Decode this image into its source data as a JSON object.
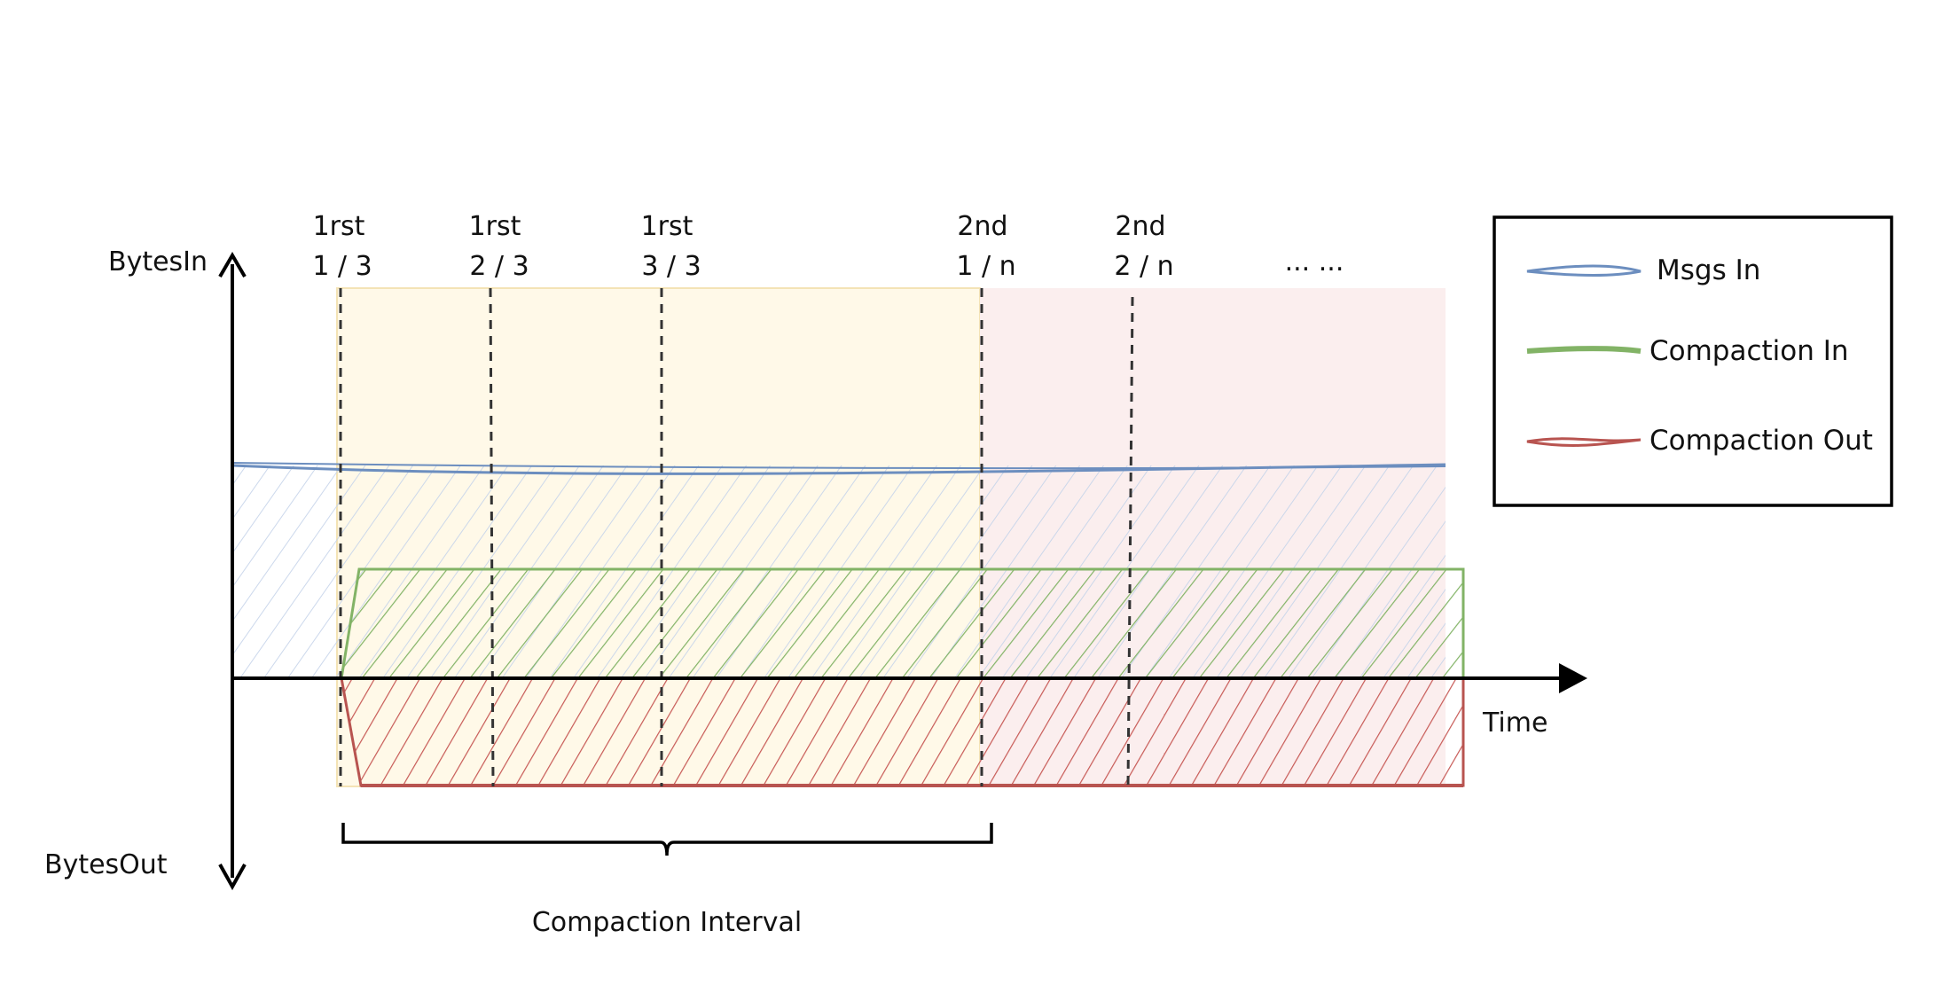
{
  "axes": {
    "y_top_label": "BytesIn",
    "y_bottom_label": "BytesOut",
    "x_label": "Time"
  },
  "markers": [
    {
      "line1": "1rst",
      "line2": "1 / 3"
    },
    {
      "line1": "1rst",
      "line2": "2 / 3"
    },
    {
      "line1": "1rst",
      "line2": "3 / 3"
    },
    {
      "line1": "2nd",
      "line2": "1 / n"
    },
    {
      "line1": "2nd",
      "line2": "2 / n"
    },
    {
      "line1": "",
      "line2": "... ..."
    }
  ],
  "interval_label": "Compaction Interval",
  "legend": {
    "items": [
      {
        "label": "Msgs In",
        "color": "#6c8ebf"
      },
      {
        "label": "Compaction In",
        "color": "#82b366"
      },
      {
        "label": "Compaction Out",
        "color": "#b85450"
      }
    ]
  },
  "colors": {
    "interval_1_fill": "#fff9e8",
    "interval_2_fill": "#fbeeee",
    "msgs_in": "#6c8ebf",
    "compaction_in": "#82b366",
    "compaction_out": "#b85450"
  }
}
